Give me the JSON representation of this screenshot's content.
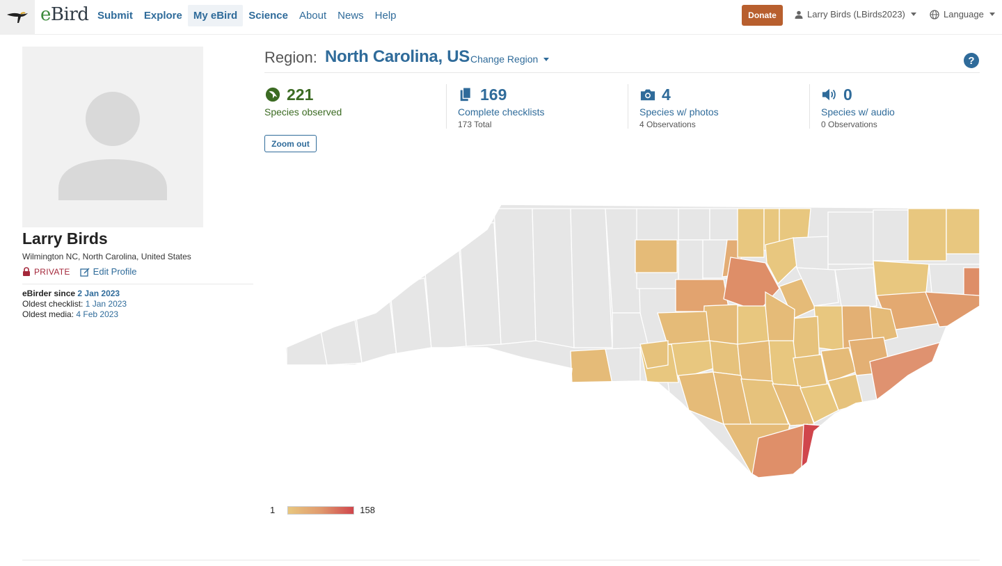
{
  "header": {
    "brand": {
      "e": "e",
      "rest": "Bird"
    },
    "nav": [
      {
        "label": "Submit"
      },
      {
        "label": "Explore"
      },
      {
        "label": "My eBird"
      },
      {
        "label": "Science"
      },
      {
        "label": "About"
      },
      {
        "label": "News"
      },
      {
        "label": "Help"
      }
    ],
    "donate_label": "Donate",
    "user_label": "Larry Birds (LBirds2023)",
    "language_label": "Language"
  },
  "profile": {
    "name": "Larry Birds",
    "location": "Wilmington NC, North Carolina, United States",
    "privacy_label": "PRIVATE",
    "edit_label": "Edit Profile",
    "since_label": "eBirder since",
    "since_date": "2 Jan 2023",
    "oldest_checklist_label": "Oldest checklist:",
    "oldest_checklist_date": "1 Jan 2023",
    "oldest_media_label": "Oldest media:",
    "oldest_media_date": "4 Feb 2023"
  },
  "region": {
    "label": "Region:",
    "name": "North Carolina, US",
    "change_label": "Change Region"
  },
  "stats": [
    {
      "value": "221",
      "label": "Species observed",
      "sub": "",
      "icon": "species-icon",
      "color": "#3c6b23"
    },
    {
      "value": "169",
      "label": "Complete checklists",
      "sub": "173 Total",
      "icon": "checklist-icon",
      "color": "#2f6b9a"
    },
    {
      "value": "4",
      "label": "Species w/ photos",
      "sub": "4 Observations",
      "icon": "camera-icon",
      "color": "#2f6b9a"
    },
    {
      "value": "0",
      "label": "Species w/ audio",
      "sub": "0 Observations",
      "icon": "speaker-icon",
      "color": "#2f6b9a"
    }
  ],
  "zoom_out_label": "Zoom out",
  "legend": {
    "min": "1",
    "max": "158",
    "color_low": "#e8c77f",
    "color_mid": "#e09a6e",
    "color_high": "#d0464c"
  },
  "colors": {
    "accent": "#2f6b9a",
    "donate": "#b85f2e",
    "private": "#a4273a",
    "county_empty": "#e6e6e6"
  }
}
